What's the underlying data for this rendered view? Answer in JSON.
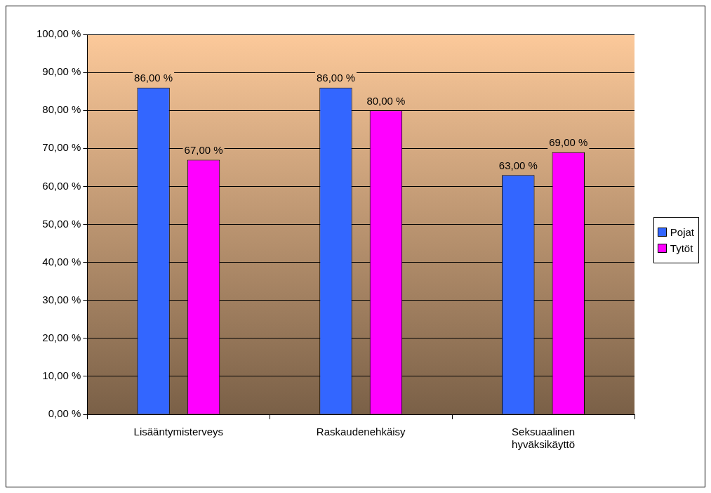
{
  "chart_data": {
    "type": "bar",
    "categories": [
      "Lisääntymisterveys",
      "Raskaudenehkäisy",
      "Seksuaalinen hyväksikäyttö"
    ],
    "series": [
      {
        "name": "Pojat",
        "color": "#3366ff",
        "values": [
          86,
          86,
          63
        ],
        "value_labels": [
          "86,00 %",
          "86,00 %",
          "63,00 %"
        ]
      },
      {
        "name": "Tytöt",
        "color": "#ff00ff",
        "values": [
          67,
          80,
          69
        ],
        "value_labels": [
          "67,00 %",
          "80,00 %",
          "69,00 %"
        ]
      }
    ],
    "ylim": [
      0,
      100
    ],
    "yticks": [
      {
        "value": 0,
        "label": "0,00 %"
      },
      {
        "value": 10,
        "label": "10,00 %"
      },
      {
        "value": 20,
        "label": "20,00 %"
      },
      {
        "value": 30,
        "label": "30,00 %"
      },
      {
        "value": 40,
        "label": "40,00 %"
      },
      {
        "value": 50,
        "label": "50,00 %"
      },
      {
        "value": 60,
        "label": "60,00 %"
      },
      {
        "value": 70,
        "label": "70,00 %"
      },
      {
        "value": 80,
        "label": "80,00 %"
      },
      {
        "value": 90,
        "label": "90,00 %"
      },
      {
        "value": 100,
        "label": "100,00 %"
      }
    ],
    "grid": "y",
    "legend": "right"
  }
}
